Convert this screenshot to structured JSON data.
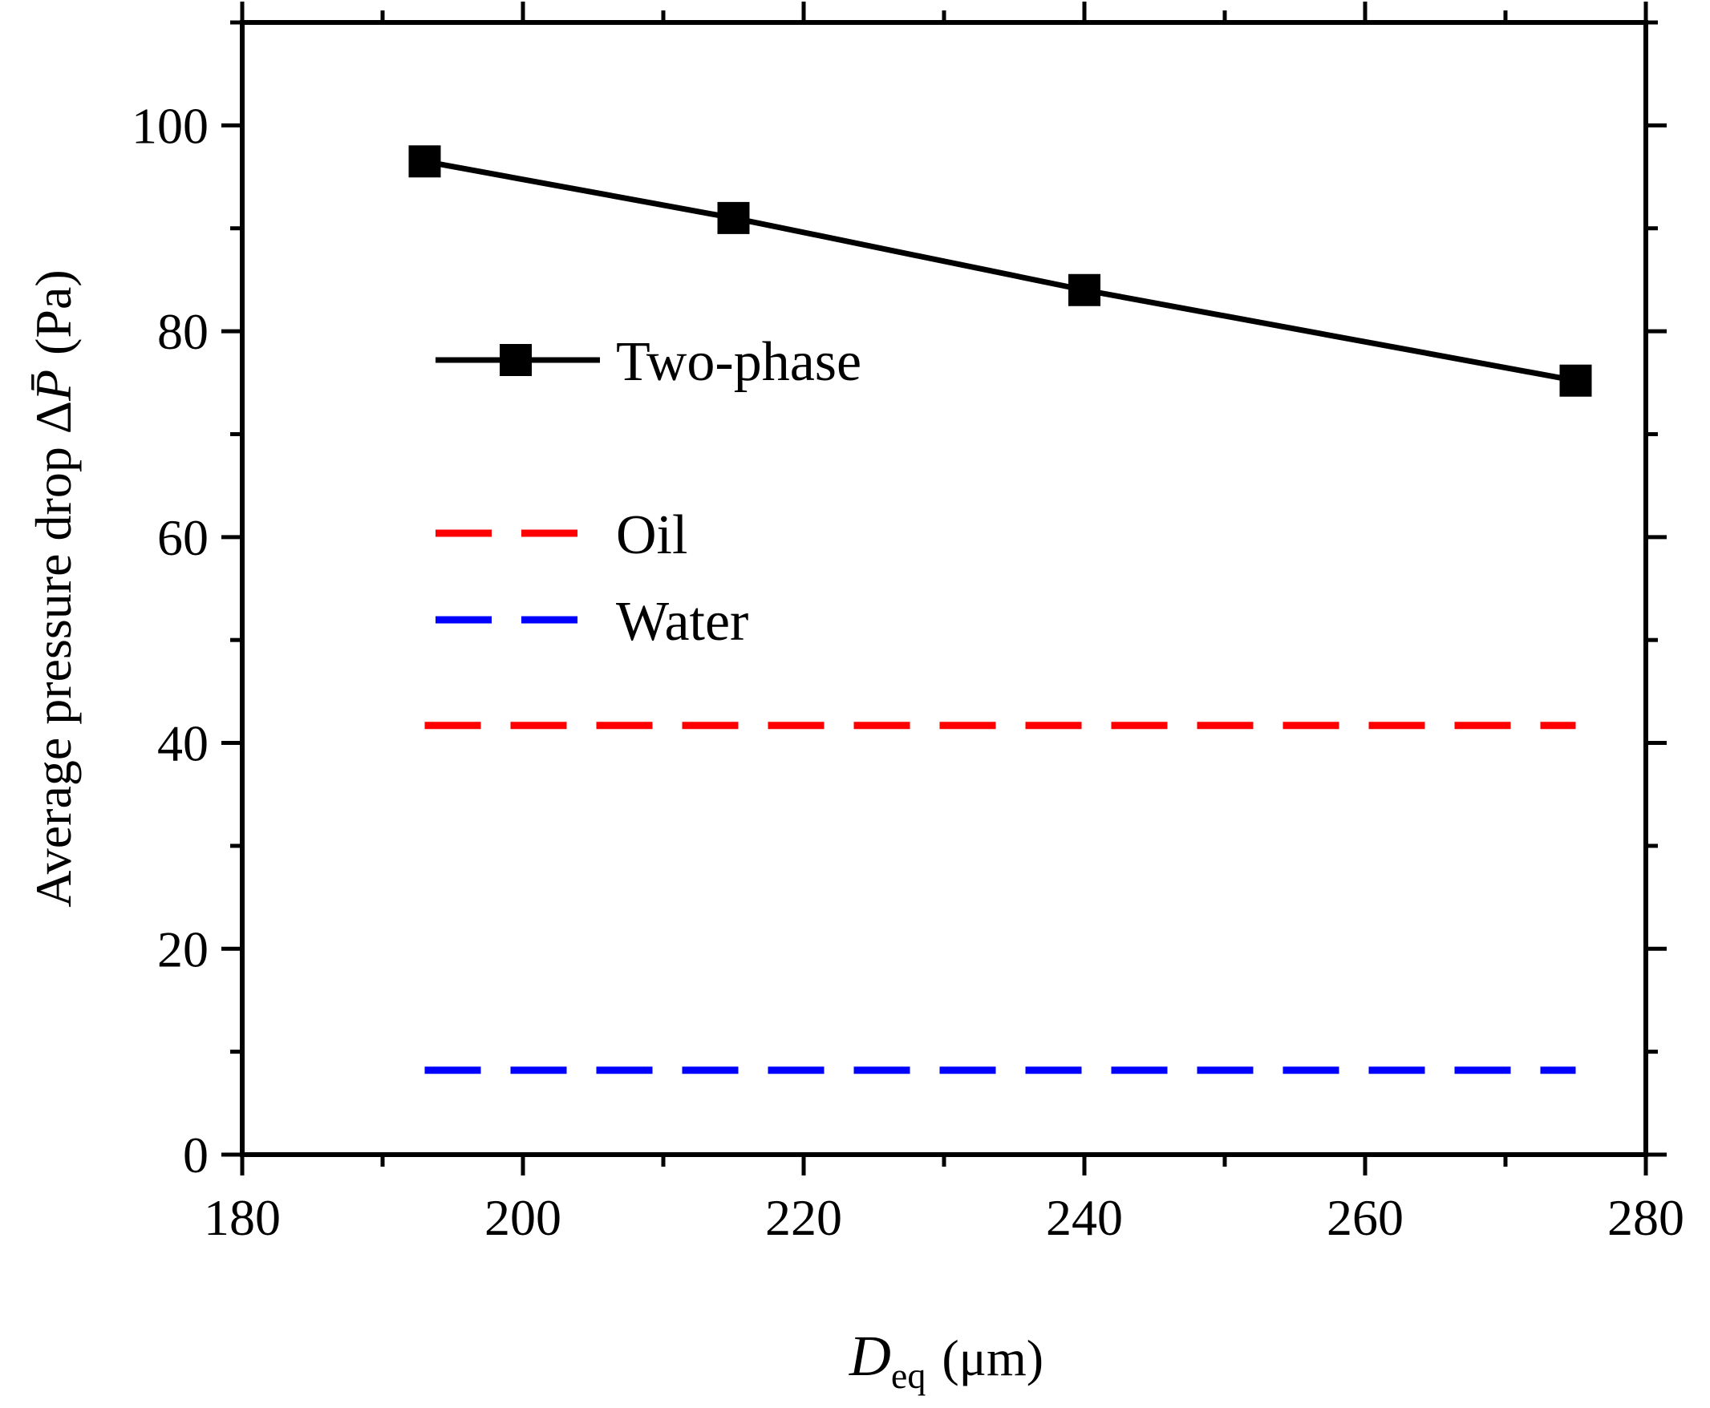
{
  "chart_data": {
    "type": "line",
    "title": "",
    "xlabel": {
      "symbol": "D",
      "subscript": "eq",
      "unit": "(μm)"
    },
    "ylabel": {
      "text": "Average pressure drop Δ",
      "symbol": "P̄",
      "unit": "(Pa)"
    },
    "xlim": [
      180,
      280
    ],
    "ylim": [
      0,
      110
    ],
    "xticks": [
      180,
      200,
      220,
      240,
      260,
      280
    ],
    "yticks": [
      0,
      20,
      40,
      60,
      80,
      100
    ],
    "x_minor_step": 10,
    "y_minor_step": 10,
    "grid": false,
    "legend_position": "upper-left",
    "series": [
      {
        "name": "Two-phase",
        "style": "solid-line-square-markers",
        "color": "#000000",
        "x": [
          193,
          215,
          240,
          275
        ],
        "y": [
          96.5,
          91.0,
          84.0,
          75.2
        ]
      },
      {
        "name": "Oil",
        "style": "dashed",
        "color": "#ff0000",
        "x": [
          193,
          275
        ],
        "y": [
          41.7,
          41.7
        ]
      },
      {
        "name": "Water",
        "style": "dashed",
        "color": "#0000ff",
        "x": [
          193,
          275
        ],
        "y": [
          8.2,
          8.2
        ]
      }
    ]
  }
}
